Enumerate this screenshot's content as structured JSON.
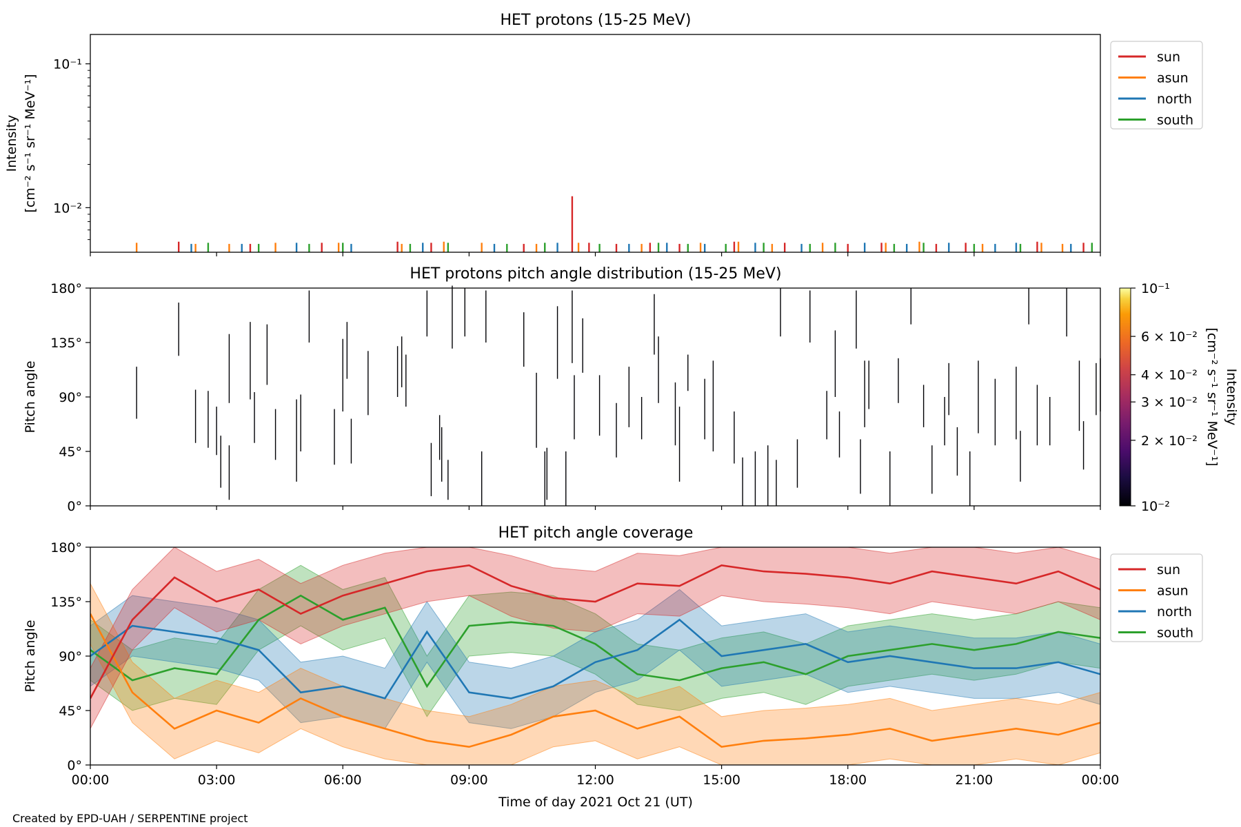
{
  "figure": {
    "xlabel": "Time of day 2021 Oct 21 (UT)",
    "footnote": "Created by EPD-UAH / SERPENTINE project"
  },
  "colors": {
    "sun": "#d62728",
    "asun": "#ff7f0e",
    "north": "#1f77b4",
    "south": "#2ca02c"
  },
  "chart_data": [
    {
      "type": "line",
      "title": "HET protons (15-25 MeV)",
      "ylabel_line1": "Intensity",
      "ylabel_line2": "[cm⁻² s⁻¹ sr⁻¹ MeV⁻¹]",
      "yscale": "log",
      "ylim": [
        0.0049,
        0.16
      ],
      "xlim_hours": [
        0,
        24
      ],
      "yticks": [
        {
          "v": 0.1,
          "label": "10⁻¹"
        },
        {
          "v": 0.01,
          "label": "10⁻²"
        }
      ],
      "xticks": [
        "00:00",
        "03:00",
        "06:00",
        "09:00",
        "12:00",
        "15:00",
        "18:00",
        "21:00",
        "00:00"
      ],
      "legend": [
        "sun",
        "asun",
        "north",
        "south"
      ],
      "legend_loc": "upper right, outside",
      "peak": {
        "series": "sun",
        "x_hours": 11.45,
        "value": 0.012
      },
      "series": [
        {
          "name": "sun",
          "x_hours": [
            2.1,
            3.8,
            5.5,
            7.3,
            8.1,
            10.3,
            11.45,
            11.85,
            12.5,
            13.3,
            14.0,
            15.3,
            16.5,
            18.0,
            18.8,
            20.1,
            20.8,
            22.5,
            23.6
          ],
          "values": [
            0.0058,
            0.0056,
            0.0057,
            0.0058,
            0.0057,
            0.0056,
            0.012,
            0.0057,
            0.0056,
            0.0057,
            0.0056,
            0.0058,
            0.0057,
            0.0056,
            0.0057,
            0.0056,
            0.0057,
            0.0058,
            0.0057
          ]
        },
        {
          "name": "asun",
          "x_hours": [
            1.1,
            2.5,
            3.3,
            4.4,
            5.9,
            7.4,
            8.4,
            9.3,
            10.6,
            11.6,
            13.1,
            14.5,
            15.4,
            16.2,
            17.4,
            18.9,
            19.7,
            21.2,
            22.6,
            23.1
          ],
          "values": [
            0.0057,
            0.0056,
            0.0056,
            0.0057,
            0.0057,
            0.0056,
            0.0058,
            0.0057,
            0.0056,
            0.0057,
            0.0056,
            0.0057,
            0.0058,
            0.0056,
            0.0057,
            0.0057,
            0.0058,
            0.0056,
            0.0057,
            0.0056
          ]
        },
        {
          "name": "north",
          "x_hours": [
            2.4,
            3.6,
            4.9,
            6.2,
            7.9,
            9.6,
            11.1,
            12.8,
            13.7,
            14.6,
            15.8,
            16.9,
            18.4,
            19.4,
            20.4,
            21.5,
            22.0,
            23.3
          ],
          "values": [
            0.0056,
            0.0056,
            0.0057,
            0.0056,
            0.0057,
            0.0056,
            0.0057,
            0.0056,
            0.0057,
            0.0056,
            0.0057,
            0.0056,
            0.0057,
            0.0056,
            0.0057,
            0.0056,
            0.0057,
            0.0056
          ]
        },
        {
          "name": "south",
          "x_hours": [
            2.8,
            4.0,
            5.2,
            6.0,
            7.6,
            8.5,
            9.9,
            10.8,
            12.1,
            13.5,
            14.2,
            15.1,
            16.0,
            17.1,
            17.7,
            19.1,
            19.8,
            21.0,
            22.1,
            23.8
          ],
          "values": [
            0.0057,
            0.0056,
            0.0056,
            0.0057,
            0.0056,
            0.0057,
            0.0056,
            0.0057,
            0.0056,
            0.0057,
            0.0056,
            0.0056,
            0.0057,
            0.0056,
            0.0057,
            0.0056,
            0.0057,
            0.0056,
            0.0056,
            0.0057
          ]
        }
      ]
    },
    {
      "type": "heatmap",
      "title": "HET protons pitch angle distribution (15-25 MeV)",
      "ylabel": "Pitch angle",
      "ylim": [
        0,
        180
      ],
      "yticks": [
        "0°",
        "45°",
        "90°",
        "135°",
        "180°"
      ],
      "xlim_hours": [
        0,
        24
      ],
      "xticks": [
        "00:00",
        "03:00",
        "06:00",
        "09:00",
        "12:00",
        "15:00",
        "18:00",
        "21:00",
        "00:00"
      ],
      "colorbar": {
        "label_line1": "Intensity",
        "label_line2": "[cm⁻² s⁻¹ sr⁻¹ MeV⁻¹]",
        "scale": "log",
        "range": [
          0.01,
          0.1
        ],
        "colormap": "inferno",
        "ticks": [
          {
            "v": 0.1,
            "label": "10⁻¹"
          },
          {
            "v": 0.06,
            "label": "6 × 10⁻²"
          },
          {
            "v": 0.04,
            "label": "4 × 10⁻²"
          },
          {
            "v": 0.03,
            "label": "3 × 10⁻²"
          },
          {
            "v": 0.02,
            "label": "2 × 10⁻²"
          },
          {
            "v": 0.01,
            "label": "10⁻²"
          }
        ]
      },
      "cells": [
        [
          1.1,
          72,
          115
        ],
        [
          2.1,
          124,
          168
        ],
        [
          2.5,
          52,
          96
        ],
        [
          2.8,
          48,
          95
        ],
        [
          3.0,
          42,
          82
        ],
        [
          3.1,
          15,
          58
        ],
        [
          3.3,
          85,
          142
        ],
        [
          3.3,
          5,
          50
        ],
        [
          3.8,
          88,
          152
        ],
        [
          3.9,
          52,
          94
        ],
        [
          4.2,
          100,
          150
        ],
        [
          4.4,
          38,
          80
        ],
        [
          4.9,
          20,
          88
        ],
        [
          5.0,
          45,
          92
        ],
        [
          5.2,
          135,
          178
        ],
        [
          5.8,
          34,
          80
        ],
        [
          6.0,
          78,
          138
        ],
        [
          6.1,
          105,
          152
        ],
        [
          6.2,
          35,
          72
        ],
        [
          6.6,
          75,
          128
        ],
        [
          7.3,
          90,
          132
        ],
        [
          7.4,
          98,
          140
        ],
        [
          7.5,
          82,
          125
        ],
        [
          8.0,
          140,
          178
        ],
        [
          8.1,
          8,
          52
        ],
        [
          8.3,
          38,
          75
        ],
        [
          8.35,
          20,
          65
        ],
        [
          8.5,
          5,
          38
        ],
        [
          8.6,
          130,
          182
        ],
        [
          8.9,
          140,
          180
        ],
        [
          9.3,
          0,
          45
        ],
        [
          9.4,
          135,
          178
        ],
        [
          10.3,
          115,
          160
        ],
        [
          10.6,
          48,
          110
        ],
        [
          10.8,
          0,
          45
        ],
        [
          10.85,
          5,
          48
        ],
        [
          11.1,
          105,
          165
        ],
        [
          11.3,
          0,
          45
        ],
        [
          11.45,
          118,
          178
        ],
        [
          11.5,
          55,
          108
        ],
        [
          11.7,
          110,
          155
        ],
        [
          12.1,
          58,
          108
        ],
        [
          12.5,
          40,
          85
        ],
        [
          12.8,
          65,
          115
        ],
        [
          13.1,
          55,
          90
        ],
        [
          13.4,
          125,
          175
        ],
        [
          13.5,
          85,
          140
        ],
        [
          13.9,
          50,
          102
        ],
        [
          14.0,
          20,
          82
        ],
        [
          14.2,
          95,
          125
        ],
        [
          14.6,
          55,
          105
        ],
        [
          14.8,
          45,
          120
        ],
        [
          15.3,
          35,
          78
        ],
        [
          15.5,
          0,
          40
        ],
        [
          15.8,
          0,
          45
        ],
        [
          16.1,
          0,
          50
        ],
        [
          16.3,
          0,
          38
        ],
        [
          16.4,
          140,
          180
        ],
        [
          16.8,
          15,
          55
        ],
        [
          17.1,
          135,
          178
        ],
        [
          17.5,
          55,
          95
        ],
        [
          17.7,
          90,
          145
        ],
        [
          17.8,
          40,
          78
        ],
        [
          18.2,
          130,
          178
        ],
        [
          18.3,
          10,
          55
        ],
        [
          18.4,
          65,
          120
        ],
        [
          18.5,
          80,
          120
        ],
        [
          19.0,
          0,
          45
        ],
        [
          19.2,
          85,
          122
        ],
        [
          19.5,
          150,
          180
        ],
        [
          19.8,
          65,
          100
        ],
        [
          20.0,
          10,
          50
        ],
        [
          20.3,
          50,
          90
        ],
        [
          20.4,
          75,
          118
        ],
        [
          20.6,
          25,
          65
        ],
        [
          20.9,
          0,
          45
        ],
        [
          21.1,
          60,
          120
        ],
        [
          21.5,
          50,
          105
        ],
        [
          22.0,
          55,
          115
        ],
        [
          22.1,
          20,
          62
        ],
        [
          22.3,
          150,
          180
        ],
        [
          22.5,
          50,
          100
        ],
        [
          22.8,
          50,
          90
        ],
        [
          23.2,
          140,
          180
        ],
        [
          23.5,
          62,
          120
        ],
        [
          23.6,
          30,
          70
        ],
        [
          23.9,
          75,
          118
        ],
        [
          24.0,
          78,
          122
        ]
      ]
    },
    {
      "type": "area",
      "title": "HET pitch angle coverage",
      "ylabel": "Pitch angle",
      "ylim": [
        0,
        180
      ],
      "yticks": [
        "0°",
        "45°",
        "90°",
        "135°",
        "180°"
      ],
      "xlim_hours": [
        0,
        24
      ],
      "xticks": [
        "00:00",
        "03:00",
        "06:00",
        "09:00",
        "12:00",
        "15:00",
        "18:00",
        "21:00",
        "00:00"
      ],
      "legend": [
        "sun",
        "asun",
        "north",
        "south"
      ],
      "legend_loc": "upper right, outside",
      "band_halfwidth_deg": 25,
      "series": [
        {
          "name": "sun",
          "x_hours": [
            0,
            1,
            2,
            3,
            4,
            5,
            6,
            7,
            8,
            9,
            10,
            11,
            12,
            13,
            14,
            15,
            16,
            17,
            18,
            19,
            20,
            21,
            22,
            23,
            24
          ],
          "values": [
            55,
            120,
            155,
            135,
            145,
            125,
            140,
            150,
            160,
            165,
            148,
            138,
            135,
            150,
            148,
            165,
            160,
            158,
            155,
            150,
            160,
            155,
            150,
            160,
            145
          ]
        },
        {
          "name": "asun",
          "x_hours": [
            0,
            1,
            2,
            3,
            4,
            5,
            6,
            7,
            8,
            9,
            10,
            11,
            12,
            13,
            14,
            15,
            16,
            17,
            18,
            19,
            20,
            21,
            22,
            23,
            24
          ],
          "values": [
            125,
            60,
            30,
            45,
            35,
            55,
            40,
            30,
            20,
            15,
            25,
            40,
            45,
            30,
            40,
            15,
            20,
            22,
            25,
            30,
            20,
            25,
            30,
            25,
            35
          ]
        },
        {
          "name": "north",
          "x_hours": [
            0,
            1,
            2,
            3,
            4,
            5,
            6,
            7,
            8,
            9,
            10,
            11,
            12,
            13,
            14,
            15,
            16,
            17,
            18,
            19,
            20,
            21,
            22,
            23,
            24
          ],
          "values": [
            90,
            115,
            110,
            105,
            95,
            60,
            65,
            55,
            110,
            60,
            55,
            65,
            85,
            95,
            120,
            90,
            95,
            100,
            85,
            90,
            85,
            80,
            80,
            85,
            75
          ]
        },
        {
          "name": "south",
          "x_hours": [
            0,
            1,
            2,
            3,
            4,
            5,
            6,
            7,
            8,
            9,
            10,
            11,
            12,
            13,
            14,
            15,
            16,
            17,
            18,
            19,
            20,
            21,
            22,
            23,
            24
          ],
          "values": [
            95,
            70,
            80,
            75,
            120,
            140,
            120,
            130,
            65,
            115,
            118,
            115,
            100,
            75,
            70,
            80,
            85,
            75,
            90,
            95,
            100,
            95,
            100,
            110,
            105
          ]
        }
      ]
    }
  ]
}
